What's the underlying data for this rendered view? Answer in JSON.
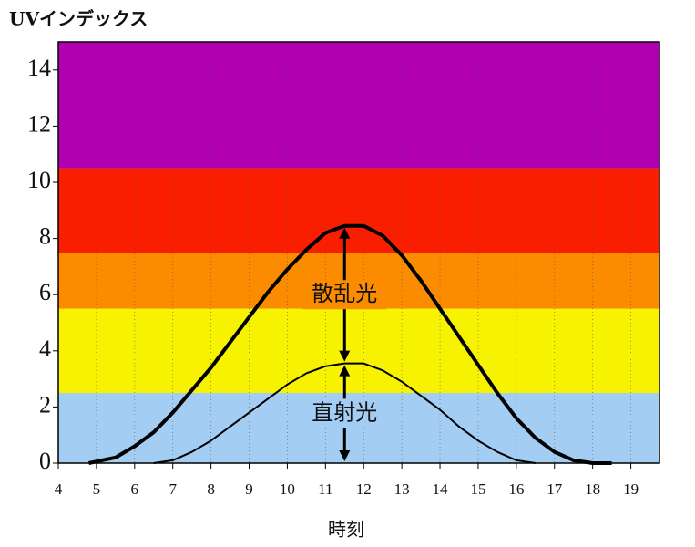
{
  "chart_data": {
    "type": "line",
    "title": "UVインデックス",
    "x_label": "時刻",
    "xlim": [
      4,
      19.75
    ],
    "ylim": [
      0,
      15
    ],
    "xticks": [
      4,
      5,
      6,
      7,
      8,
      9,
      10,
      11,
      12,
      13,
      14,
      15,
      16,
      17,
      18,
      19
    ],
    "yticks": [
      0,
      2,
      4,
      6,
      8,
      10,
      12,
      14
    ],
    "grid": true,
    "bands": [
      {
        "from": 0,
        "to": 2.5,
        "color": "#a4cdf4"
      },
      {
        "from": 2.5,
        "to": 5.5,
        "color": "#f7f200"
      },
      {
        "from": 5.5,
        "to": 7.5,
        "color": "#fb8c00"
      },
      {
        "from": 7.5,
        "to": 10.5,
        "color": "#fa1e00"
      },
      {
        "from": 10.5,
        "to": 15,
        "color": "#b000b0"
      }
    ],
    "series": [
      {
        "name": "散乱光",
        "color": "#000000",
        "x": [
          4.8,
          5.5,
          6,
          6.5,
          7,
          7.5,
          8,
          8.5,
          9,
          9.5,
          10,
          10.5,
          11,
          11.5,
          12,
          12.5,
          13,
          13.5,
          14,
          14.5,
          15,
          15.5,
          16,
          16.5,
          17,
          17.5,
          18,
          18.5
        ],
        "values": [
          0,
          0.2,
          0.6,
          1.1,
          1.8,
          2.6,
          3.4,
          4.3,
          5.2,
          6.1,
          6.9,
          7.6,
          8.2,
          8.45,
          8.45,
          8.1,
          7.4,
          6.5,
          5.5,
          4.5,
          3.5,
          2.5,
          1.6,
          0.9,
          0.4,
          0.1,
          0,
          0
        ]
      },
      {
        "name": "直射光",
        "color": "#000000",
        "x": [
          6.5,
          7,
          7.5,
          8,
          8.5,
          9,
          9.5,
          10,
          10.5,
          11,
          11.5,
          12,
          12.5,
          13,
          13.5,
          14,
          14.5,
          15,
          15.5,
          16,
          16.5
        ],
        "values": [
          0,
          0.1,
          0.4,
          0.8,
          1.3,
          1.8,
          2.3,
          2.8,
          3.2,
          3.45,
          3.55,
          3.55,
          3.3,
          2.9,
          2.4,
          1.9,
          1.3,
          0.8,
          0.4,
          0.1,
          0
        ]
      }
    ]
  }
}
